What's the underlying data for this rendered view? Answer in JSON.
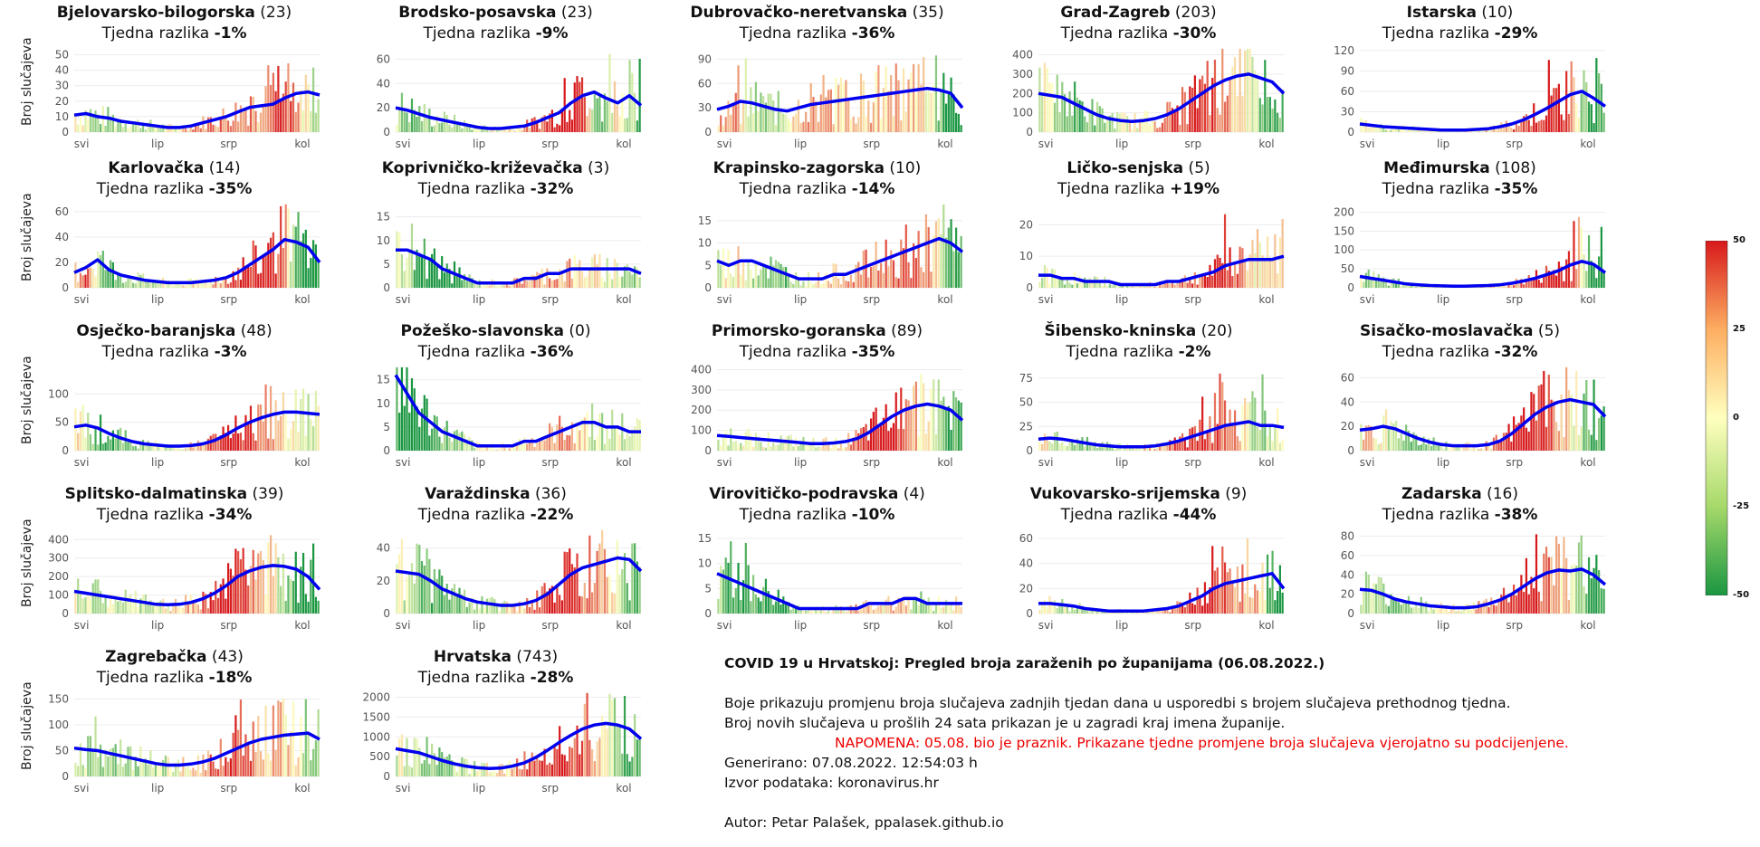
{
  "y_axis_label": "Broj slučajeva",
  "x_ticks": [
    "svi",
    "lip",
    "srp",
    "kol"
  ],
  "weekly_label": "Tjedna razlika",
  "colors": {
    "line": "#0000ee",
    "neg": "#1a9641",
    "mid": "#ffffbf",
    "pos": "#d7191c"
  },
  "legend": {
    "ticks": [
      "50",
      "25",
      "0",
      "-25",
      "-50"
    ]
  },
  "info": {
    "title": "COVID 19 u Hrvatskoj: Pregled broja zaraženih po županijama (06.08.2022.)",
    "line1": "Boje prikazuju promjenu broja slučajeva zadnjih tjedan dana u usporedbi s brojem slučajeva prethodnog tjedna.",
    "line2": "Broj novih slučajeva u prošlih 24 sata prikazan je u zagradi kraj imena županije.",
    "note": "NAPOMENA: 05.08. bio je praznik. Prikazane tjedne promjene broja slučajeva vjerojatno su podcijenjene.",
    "generated": "Generirano: 07.08.2022. 12:54:03 h",
    "source": "Izvor podataka: koronavirus.hr",
    "author": "Autor: Petar Palašek, ppalasek.github.io"
  },
  "chart_data": [
    {
      "type": "bar",
      "title": "Bjelovarsko-bilogorska",
      "last24": "(23)",
      "change": "-1%",
      "yticks": [
        0,
        10,
        20,
        30,
        40,
        50
      ],
      "ymax": 55,
      "line": [
        11,
        12,
        10,
        9,
        7,
        6,
        5,
        4,
        3,
        3,
        4,
        6,
        8,
        10,
        13,
        16,
        17,
        18,
        22,
        25,
        26,
        24
      ],
      "peak": 50
    },
    {
      "type": "bar",
      "title": "Brodsko-posavska",
      "last24": "(23)",
      "change": "-9%",
      "yticks": [
        0,
        20,
        40,
        60
      ],
      "ymax": 70,
      "line": [
        20,
        18,
        15,
        12,
        10,
        8,
        6,
        4,
        3,
        3,
        4,
        5,
        8,
        12,
        16,
        24,
        30,
        33,
        28,
        24,
        30,
        22
      ],
      "peak": 70
    },
    {
      "type": "bar",
      "title": "Dubrovačko-neretvanska",
      "last24": "(35)",
      "change": "-36%",
      "yticks": [
        0,
        30,
        60,
        90
      ],
      "ymax": 105,
      "line": [
        28,
        32,
        38,
        36,
        32,
        28,
        26,
        30,
        34,
        36,
        38,
        40,
        42,
        44,
        46,
        48,
        50,
        52,
        54,
        52,
        48,
        30
      ],
      "peak": 95
    },
    {
      "type": "bar",
      "title": "Grad-Zagreb",
      "last24": "(203)",
      "change": "-30%",
      "yticks": [
        0,
        100,
        200,
        300,
        400
      ],
      "ymax": 440,
      "line": [
        200,
        190,
        180,
        150,
        120,
        90,
        70,
        60,
        55,
        60,
        70,
        90,
        120,
        160,
        200,
        240,
        270,
        290,
        300,
        280,
        260,
        200
      ],
      "peak": 430
    },
    {
      "type": "bar",
      "title": "Istarska",
      "last24": "(10)",
      "change": "-29%",
      "yticks": [
        0,
        30,
        60,
        90,
        120
      ],
      "ymax": 125,
      "line": [
        12,
        10,
        8,
        7,
        6,
        5,
        4,
        3,
        3,
        3,
        4,
        5,
        8,
        12,
        18,
        26,
        35,
        45,
        55,
        60,
        50,
        38
      ],
      "peak": 118
    },
    {
      "type": "bar",
      "title": "Karlovačka",
      "last24": "(14)",
      "change": "-35%",
      "yticks": [
        0,
        20,
        40,
        60
      ],
      "ymax": 67,
      "line": [
        12,
        16,
        22,
        14,
        10,
        8,
        6,
        5,
        4,
        4,
        4,
        5,
        6,
        8,
        12,
        18,
        24,
        30,
        38,
        36,
        32,
        20
      ],
      "peak": 63
    },
    {
      "type": "bar",
      "title": "Koprivničko-križevačka",
      "last24": "(3)",
      "change": "-32%",
      "yticks": [
        0,
        5,
        10,
        15
      ],
      "ymax": 18,
      "line": [
        8,
        8,
        7,
        6,
        4,
        3,
        2,
        1,
        1,
        1,
        1,
        2,
        2,
        3,
        3,
        4,
        4,
        4,
        4,
        4,
        4,
        3
      ],
      "peak": 17
    },
    {
      "type": "bar",
      "title": "Krapinsko-zagorska",
      "last24": "(10)",
      "change": "-14%",
      "yticks": [
        0,
        5,
        10,
        15
      ],
      "ymax": 19,
      "line": [
        6,
        5,
        6,
        6,
        5,
        4,
        3,
        2,
        2,
        2,
        3,
        3,
        4,
        5,
        6,
        7,
        8,
        9,
        10,
        11,
        10,
        8
      ],
      "peak": 18
    },
    {
      "type": "bar",
      "title": "Ličko-senjska",
      "last24": "(5)",
      "change": "+19%",
      "yticks": [
        0,
        10,
        20
      ],
      "ymax": 27,
      "line": [
        4,
        4,
        3,
        3,
        2,
        2,
        2,
        1,
        1,
        1,
        1,
        2,
        2,
        3,
        4,
        5,
        7,
        8,
        9,
        9,
        9,
        10
      ],
      "peak": 26
    },
    {
      "type": "bar",
      "title": "Međimurska",
      "last24": "(108)",
      "change": "-35%",
      "yticks": [
        0,
        50,
        100,
        150,
        200
      ],
      "ymax": 225,
      "line": [
        30,
        25,
        20,
        15,
        10,
        8,
        6,
        5,
        4,
        4,
        5,
        6,
        8,
        12,
        18,
        25,
        35,
        45,
        60,
        70,
        62,
        40
      ],
      "peak": 215
    },
    {
      "type": "bar",
      "title": "Osječko-baranjska",
      "last24": "(48)",
      "change": "-3%",
      "yticks": [
        0,
        50,
        100
      ],
      "ymax": 150,
      "line": [
        42,
        45,
        40,
        30,
        22,
        16,
        12,
        10,
        8,
        8,
        9,
        12,
        18,
        28,
        40,
        50,
        58,
        64,
        68,
        68,
        66,
        64
      ],
      "peak": 145
    },
    {
      "type": "bar",
      "title": "Požeško-slavonska",
      "last24": "(0)",
      "change": "-36%",
      "yticks": [
        0,
        5,
        10,
        15
      ],
      "ymax": 18,
      "line": [
        16,
        12,
        8,
        6,
        4,
        3,
        2,
        1,
        1,
        1,
        1,
        2,
        2,
        3,
        4,
        5,
        6,
        6,
        5,
        5,
        4,
        4
      ],
      "peak": 18
    },
    {
      "type": "bar",
      "title": "Primorsko-goranska",
      "last24": "(89)",
      "change": "-35%",
      "yticks": [
        0,
        100,
        200,
        300,
        400
      ],
      "ymax": 420,
      "line": [
        75,
        70,
        65,
        60,
        55,
        50,
        45,
        40,
        35,
        35,
        38,
        45,
        60,
        90,
        130,
        170,
        200,
        220,
        230,
        220,
        200,
        150
      ],
      "peak": 410
    },
    {
      "type": "bar",
      "title": "Šibensko-kninska",
      "last24": "(20)",
      "change": "-2%",
      "yticks": [
        0,
        25,
        50,
        75
      ],
      "ymax": 88,
      "line": [
        12,
        13,
        12,
        10,
        8,
        6,
        5,
        4,
        4,
        4,
        5,
        7,
        10,
        14,
        18,
        22,
        26,
        28,
        30,
        26,
        26,
        24
      ],
      "peak": 80
    },
    {
      "type": "bar",
      "title": "Sisačko-moslavačka",
      "last24": "(5)",
      "change": "-32%",
      "yticks": [
        0,
        20,
        40,
        60
      ],
      "ymax": 70,
      "line": [
        17,
        18,
        20,
        18,
        14,
        10,
        7,
        5,
        4,
        4,
        4,
        5,
        8,
        14,
        22,
        30,
        36,
        40,
        42,
        40,
        38,
        28
      ],
      "peak": 70
    },
    {
      "type": "bar",
      "title": "Splitsko-dalmatinska",
      "last24": "(39)",
      "change": "-34%",
      "yticks": [
        0,
        100,
        200,
        300,
        400
      ],
      "ymax": 460,
      "line": [
        120,
        110,
        100,
        90,
        80,
        70,
        60,
        50,
        48,
        50,
        60,
        80,
        110,
        150,
        200,
        230,
        250,
        260,
        255,
        240,
        200,
        130
      ],
      "peak": 450
    },
    {
      "type": "bar",
      "title": "Varaždinska",
      "last24": "(36)",
      "change": "-22%",
      "yticks": [
        0,
        20,
        40
      ],
      "ymax": 52,
      "line": [
        26,
        25,
        24,
        20,
        15,
        12,
        9,
        7,
        6,
        5,
        5,
        6,
        8,
        12,
        18,
        24,
        28,
        30,
        32,
        34,
        33,
        26
      ],
      "peak": 47
    },
    {
      "type": "bar",
      "title": "Virovitičko-podravska",
      "last24": "(4)",
      "change": "-10%",
      "yticks": [
        0,
        5,
        10,
        15
      ],
      "ymax": 17,
      "line": [
        8,
        7,
        6,
        5,
        4,
        3,
        2,
        1,
        1,
        1,
        1,
        1,
        1,
        2,
        2,
        2,
        3,
        3,
        2,
        2,
        2,
        2
      ],
      "peak": 16
    },
    {
      "type": "bar",
      "title": "Vukovarsko-srijemska",
      "last24": "(9)",
      "change": "-44%",
      "yticks": [
        0,
        20,
        40,
        60
      ],
      "ymax": 68,
      "line": [
        8,
        8,
        7,
        6,
        4,
        3,
        2,
        2,
        2,
        2,
        3,
        4,
        6,
        10,
        14,
        20,
        24,
        26,
        28,
        30,
        32,
        20
      ],
      "peak": 66
    },
    {
      "type": "bar",
      "title": "Zadarska",
      "last24": "(16)",
      "change": "-38%",
      "yticks": [
        0,
        20,
        40,
        60,
        80
      ],
      "ymax": 88,
      "line": [
        25,
        24,
        20,
        15,
        12,
        10,
        8,
        7,
        6,
        6,
        7,
        10,
        14,
        20,
        28,
        36,
        42,
        45,
        44,
        46,
        40,
        30
      ],
      "peak": 85
    },
    {
      "type": "bar",
      "title": "Zagrebačka",
      "last24": "(43)",
      "change": "-18%",
      "yticks": [
        0,
        50,
        100,
        150
      ],
      "ymax": 165,
      "line": [
        55,
        52,
        50,
        45,
        40,
        35,
        30,
        25,
        22,
        22,
        24,
        28,
        35,
        45,
        55,
        65,
        72,
        76,
        80,
        82,
        84,
        72
      ],
      "peak": 158
    },
    {
      "type": "bar",
      "title": "Hrvatska",
      "last24": "(743)",
      "change": "-28%",
      "yticks": [
        0,
        500,
        1000,
        1500,
        2000
      ],
      "ymax": 2150,
      "line": [
        700,
        650,
        600,
        500,
        400,
        320,
        260,
        220,
        200,
        210,
        260,
        340,
        480,
        660,
        860,
        1040,
        1200,
        1300,
        1340,
        1300,
        1200,
        950
      ],
      "peak": 2100
    }
  ]
}
